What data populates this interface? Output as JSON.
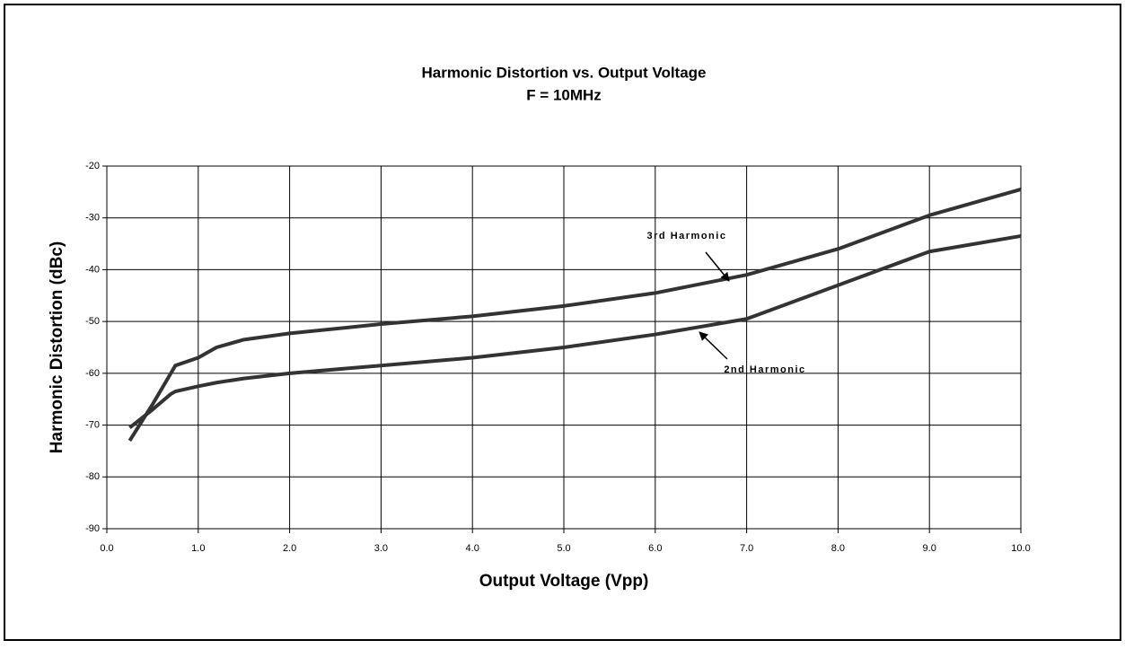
{
  "chart_data": {
    "type": "line",
    "title": "Harmonic Distortion vs. Output Voltage",
    "subtitle": "F = 10MHz",
    "x_label": "Output Voltage (Vpp)",
    "y_label": "Harmonic Distortion (dBc)",
    "x": [
      0.25,
      0.5,
      0.7,
      0.75,
      1.0,
      1.2,
      1.5,
      2.0,
      3.0,
      4.0,
      5.0,
      6.0,
      7.0,
      8.0,
      9.0,
      10.0
    ],
    "series": [
      {
        "name": "3rd Harmonic",
        "color": "#333333",
        "values": [
          -73,
          -66,
          -60,
          -58.5,
          -57,
          -55,
          -53.5,
          -52.3,
          -50.5,
          -49,
          -47,
          -44.5,
          -41,
          -36,
          -29.5,
          -24.5
        ]
      },
      {
        "name": "2nd Harmonic",
        "color": "#333333",
        "values": [
          -70.5,
          -67,
          -64,
          -63.5,
          -62.5,
          -61.8,
          -61,
          -60,
          -58.5,
          -57,
          -55,
          -52.5,
          -49.5,
          -43,
          -36.5,
          -33.5
        ]
      }
    ],
    "annotations": [
      {
        "text": "3rd Harmonic"
      },
      {
        "text": "2nd Harmonic"
      }
    ],
    "xlim": [
      0,
      10
    ],
    "xticks": [
      {
        "value": 0,
        "label": "0.0"
      },
      {
        "value": 1,
        "label": "1.0"
      },
      {
        "value": 2,
        "label": "2.0"
      },
      {
        "value": 3,
        "label": "3.0"
      },
      {
        "value": 4,
        "label": "4.0"
      },
      {
        "value": 5,
        "label": "5.0"
      },
      {
        "value": 6,
        "label": "6.0"
      },
      {
        "value": 7,
        "label": "7.0"
      },
      {
        "value": 8,
        "label": "8.0"
      },
      {
        "value": 9,
        "label": "9.0"
      },
      {
        "value": 10,
        "label": "10.0"
      }
    ],
    "ylim": [
      -90,
      -20
    ],
    "yticks": [
      -90,
      -80,
      -70,
      -60,
      -50,
      -40,
      -30,
      -20
    ],
    "grid": true
  }
}
